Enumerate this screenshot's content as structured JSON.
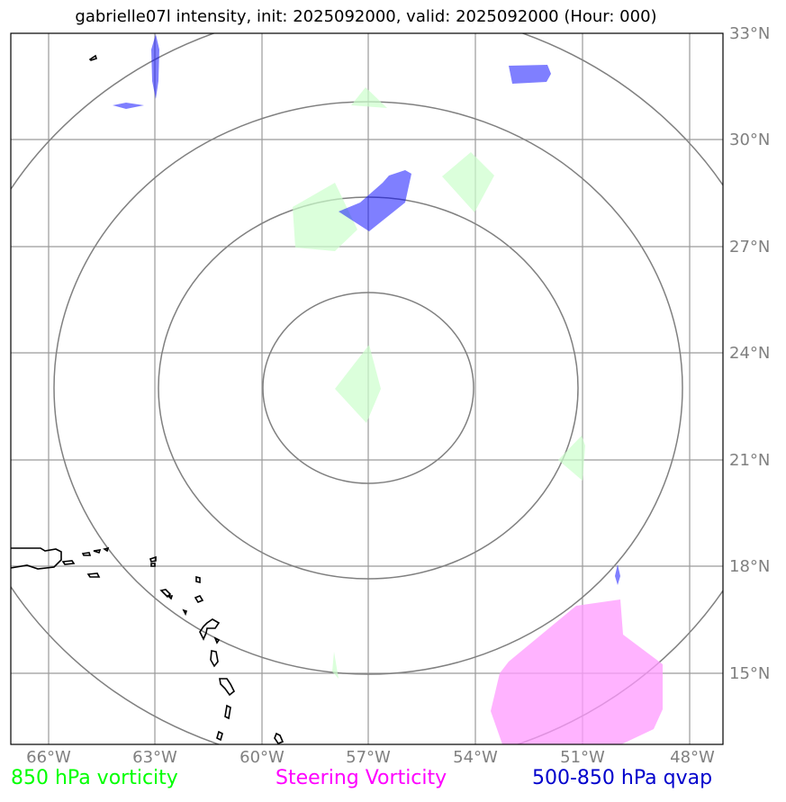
{
  "title": "gabrielle07l intensity, init: 2025092000, valid: 2025092000 (Hour: 000)",
  "storm_id": "gabrielle07l",
  "init_time": "2025092000",
  "valid_time": "2025092000",
  "forecast_hour": "000",
  "latitude_labels": [
    "33°N",
    "30°N",
    "27°N",
    "24°N",
    "21°N",
    "18°N",
    "15°N"
  ],
  "longitude_labels": [
    "66°W",
    "63°W",
    "60°W",
    "57°W",
    "54°W",
    "51°W",
    "48°W"
  ],
  "legend": {
    "item1": {
      "label": "850 hPa vorticity",
      "color": "#00ff00"
    },
    "item2": {
      "label": "Steering Vorticity",
      "color": "#ff00ff"
    },
    "item3": {
      "label": "500-850 hPa qvap",
      "color": "#0000cc"
    }
  },
  "colors": {
    "vorticity_fill": "#ccffcc",
    "steering_fill": "#ff99ff",
    "qvap_fill": "#0000ff",
    "grid": "#999999",
    "range_rings": "#808080",
    "coastline": "#000000"
  }
}
